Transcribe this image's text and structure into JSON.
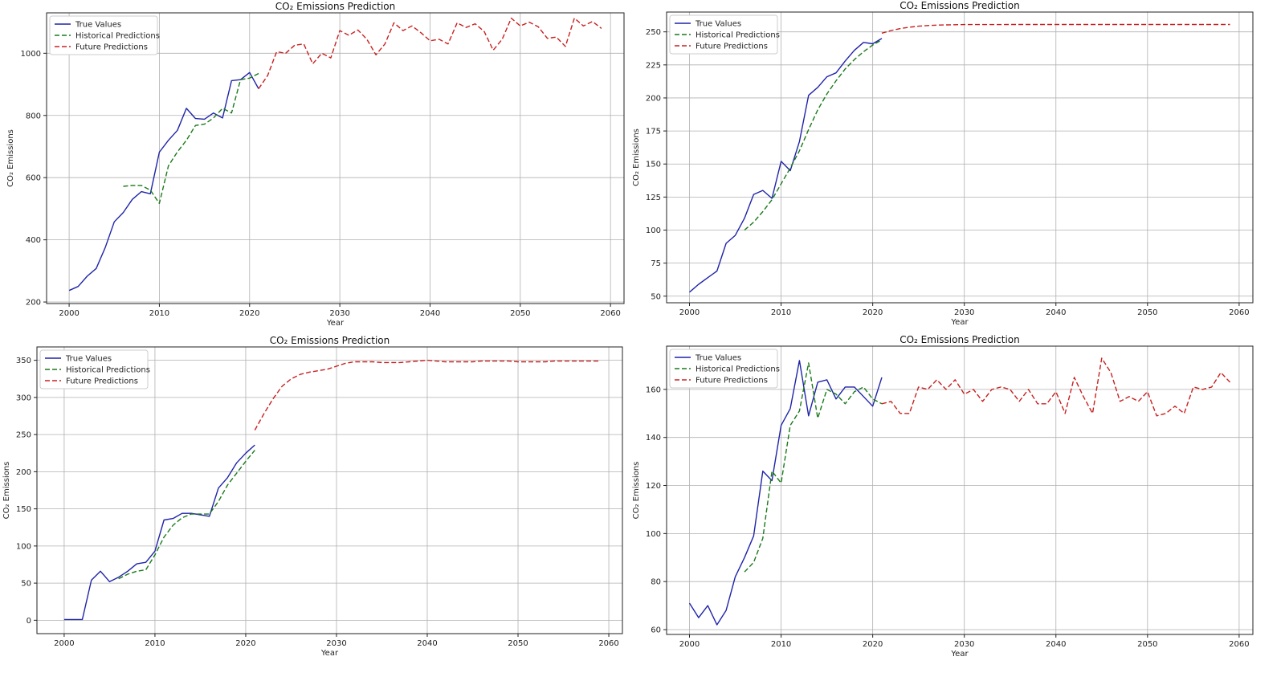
{
  "legend_labels": [
    "True Values",
    "Historical Predictions",
    "Future Predictions"
  ],
  "colors": {
    "true": "#1f24a8",
    "historical": "#1a7a1a",
    "future": "#c82020",
    "grid": "#b0b0b0"
  },
  "chart_data": [
    {
      "type": "line",
      "title": "CO₂ Emissions Prediction",
      "xlabel": "Year",
      "ylabel": "CO₂ Emissions",
      "xlim": [
        1997.5,
        2061.5
      ],
      "ylim": [
        195,
        1130
      ],
      "xticks": [
        2000,
        2010,
        2020,
        2030,
        2040,
        2050,
        2060
      ],
      "yticks": [
        200,
        400,
        600,
        800,
        1000
      ],
      "grid": true,
      "legend_position": "top-left",
      "series": [
        {
          "name": "True Values",
          "style": "solid",
          "color": "#1f24a8",
          "x": [
            2000,
            2001,
            2002,
            2003,
            2004,
            2005,
            2006,
            2007,
            2008,
            2009,
            2010,
            2011,
            2012,
            2013,
            2014,
            2015,
            2016,
            2017,
            2018,
            2019,
            2020,
            2021
          ],
          "y": [
            237,
            250,
            283,
            308,
            375,
            458,
            488,
            530,
            555,
            548,
            682,
            720,
            752,
            823,
            790,
            788,
            808,
            792,
            912,
            915,
            938,
            886
          ]
        },
        {
          "name": "Historical Predictions",
          "style": "dashed",
          "color": "#1a7a1a",
          "x": [
            2006,
            2007,
            2008,
            2009,
            2010,
            2011,
            2012,
            2013,
            2014,
            2015,
            2016,
            2017,
            2018,
            2019,
            2020,
            2021
          ],
          "y": [
            572,
            575,
            575,
            560,
            517,
            638,
            683,
            720,
            768,
            772,
            792,
            823,
            808,
            915,
            920,
            935
          ]
        },
        {
          "name": "Future Predictions",
          "style": "dashed",
          "color": "#c82020",
          "x": [
            2021,
            2022,
            2023,
            2024,
            2025,
            2026,
            2027,
            2028,
            2029,
            2030,
            2031,
            2032,
            2033,
            2034,
            2035,
            2036,
            2037,
            2038,
            2039,
            2040,
            2041,
            2042,
            2043,
            2044,
            2045,
            2046,
            2047,
            2048,
            2049,
            2050,
            2051,
            2052,
            2053,
            2054,
            2055,
            2056,
            2057,
            2058,
            2059
          ],
          "y": [
            886,
            928,
            1005,
            1000,
            1026,
            1030,
            966,
            1000,
            985,
            1073,
            1058,
            1075,
            1045,
            995,
            1030,
            1098,
            1073,
            1088,
            1066,
            1040,
            1045,
            1030,
            1098,
            1083,
            1095,
            1070,
            1010,
            1045,
            1113,
            1088,
            1100,
            1085,
            1048,
            1052,
            1022,
            1113,
            1088,
            1102,
            1080
          ]
        }
      ]
    },
    {
      "type": "line",
      "title": "CO₂ Emissions Prediction",
      "xlabel": "Year",
      "ylabel": "CO₂ Emissions",
      "xlim": [
        1997.5,
        2061.5
      ],
      "ylim": [
        45,
        265
      ],
      "xticks": [
        2000,
        2010,
        2020,
        2030,
        2040,
        2050,
        2060
      ],
      "yticks": [
        50,
        75,
        100,
        125,
        150,
        175,
        200,
        225,
        250
      ],
      "grid": true,
      "legend_position": "top-left",
      "series": [
        {
          "name": "True Values",
          "style": "solid",
          "color": "#1f24a8",
          "x": [
            2000,
            2001,
            2002,
            2003,
            2004,
            2005,
            2006,
            2007,
            2008,
            2009,
            2010,
            2011,
            2012,
            2013,
            2014,
            2015,
            2016,
            2017,
            2018,
            2019,
            2020,
            2021
          ],
          "y": [
            53,
            59,
            64,
            69,
            90,
            96,
            109,
            127,
            130,
            124,
            152,
            145,
            167,
            202,
            208,
            216,
            219,
            228,
            236,
            242,
            241,
            245
          ]
        },
        {
          "name": "Historical Predictions",
          "style": "dashed",
          "color": "#1a7a1a",
          "x": [
            2006,
            2007,
            2008,
            2009,
            2010,
            2011,
            2012,
            2013,
            2014,
            2015,
            2016,
            2017,
            2018,
            2019,
            2020,
            2021
          ],
          "y": [
            100,
            106,
            114,
            123,
            135,
            147,
            160,
            176,
            191,
            203,
            213,
            222,
            229,
            235,
            240,
            244
          ]
        },
        {
          "name": "Future Predictions",
          "style": "dashed",
          "color": "#c82020",
          "x": [
            2021,
            2022,
            2023,
            2024,
            2025,
            2026,
            2027,
            2028,
            2029,
            2030,
            2035,
            2040,
            2045,
            2050,
            2055,
            2059
          ],
          "y": [
            249,
            251,
            252.5,
            253.5,
            254.3,
            254.8,
            255.1,
            255.3,
            255.4,
            255.5,
            255.6,
            255.6,
            255.6,
            255.6,
            255.6,
            255.6
          ]
        }
      ]
    },
    {
      "type": "line",
      "title": "CO₂ Emissions Prediction",
      "xlabel": "Year",
      "ylabel": "CO₂ Emissions",
      "xlim": [
        1997,
        2061.5
      ],
      "ylim": [
        -18,
        368
      ],
      "xticks": [
        2000,
        2010,
        2020,
        2030,
        2040,
        2050,
        2060
      ],
      "yticks": [
        0,
        50,
        100,
        150,
        200,
        250,
        300,
        350
      ],
      "grid": true,
      "legend_position": "top-left",
      "series": [
        {
          "name": "True Values",
          "style": "solid",
          "color": "#1f24a8",
          "x": [
            2000,
            2001,
            2002,
            2003,
            2004,
            2005,
            2006,
            2007,
            2008,
            2009,
            2010,
            2011,
            2012,
            2013,
            2014,
            2015,
            2016,
            2017,
            2018,
            2019,
            2020,
            2021
          ],
          "y": [
            1,
            1,
            1,
            54,
            66,
            52,
            58,
            66,
            76,
            78,
            93,
            135,
            137,
            144,
            144,
            142,
            140,
            178,
            192,
            212,
            225,
            236
          ]
        },
        {
          "name": "Historical Predictions",
          "style": "dashed",
          "color": "#1a7a1a",
          "x": [
            2006,
            2007,
            2008,
            2009,
            2010,
            2011,
            2012,
            2013,
            2014,
            2015,
            2016,
            2017,
            2018,
            2019,
            2020,
            2021
          ],
          "y": [
            56,
            62,
            66,
            68,
            88,
            112,
            128,
            138,
            143,
            143,
            143,
            160,
            182,
            198,
            214,
            229
          ]
        },
        {
          "name": "Future Predictions",
          "style": "dashed",
          "color": "#c82020",
          "x": [
            2021,
            2022,
            2023,
            2024,
            2025,
            2026,
            2027,
            2028,
            2029,
            2030,
            2031,
            2032,
            2033,
            2034,
            2035,
            2036,
            2037,
            2038,
            2039,
            2040,
            2041,
            2042,
            2043,
            2044,
            2045,
            2046,
            2047,
            2048,
            2049,
            2050,
            2051,
            2052,
            2053,
            2054,
            2055,
            2056,
            2057,
            2058,
            2059
          ],
          "y": [
            256,
            278,
            298,
            315,
            325,
            331,
            334,
            336,
            338,
            342,
            346,
            348,
            348,
            348,
            347,
            347,
            347,
            348,
            349,
            350,
            349,
            348,
            348,
            348,
            348,
            349,
            349,
            349,
            349,
            348,
            348,
            348,
            348,
            349,
            349,
            349,
            349,
            349,
            349
          ]
        }
      ]
    },
    {
      "type": "line",
      "title": "CO₂ Emissions Prediction",
      "xlabel": "Year",
      "ylabel": "CO₂ Emissions",
      "xlim": [
        1997.5,
        2061.5
      ],
      "ylim": [
        58,
        178
      ],
      "xticks": [
        2000,
        2010,
        2020,
        2030,
        2040,
        2050,
        2060
      ],
      "yticks": [
        60,
        80,
        100,
        120,
        140,
        160
      ],
      "grid": true,
      "legend_position": "top-left",
      "series": [
        {
          "name": "True Values",
          "style": "solid",
          "color": "#1f24a8",
          "x": [
            2000,
            2001,
            2002,
            2003,
            2004,
            2005,
            2006,
            2007,
            2008,
            2009,
            2010,
            2011,
            2012,
            2013,
            2014,
            2015,
            2016,
            2017,
            2018,
            2019,
            2020,
            2021
          ],
          "y": [
            71,
            65,
            70,
            62,
            68,
            82,
            90,
            99,
            126,
            122,
            145,
            152,
            172,
            149,
            163,
            164,
            156,
            161,
            161,
            157,
            153,
            165
          ]
        },
        {
          "name": "Historical Predictions",
          "style": "dashed",
          "color": "#1a7a1a",
          "x": [
            2006,
            2007,
            2008,
            2009,
            2010,
            2011,
            2012,
            2013,
            2014,
            2015,
            2016,
            2017,
            2018,
            2019,
            2020,
            2021
          ],
          "y": [
            84,
            88,
            98,
            126,
            121,
            145,
            151,
            171,
            148,
            160,
            158,
            154,
            159,
            161,
            156,
            154
          ]
        },
        {
          "name": "Future Predictions",
          "style": "dashed",
          "color": "#c82020",
          "x": [
            2021,
            2022,
            2023,
            2024,
            2025,
            2026,
            2027,
            2028,
            2029,
            2030,
            2031,
            2032,
            2033,
            2034,
            2035,
            2036,
            2037,
            2038,
            2039,
            2040,
            2041,
            2042,
            2043,
            2044,
            2045,
            2046,
            2047,
            2048,
            2049,
            2050,
            2051,
            2052,
            2053,
            2054,
            2055,
            2056,
            2057,
            2058,
            2059
          ],
          "y": [
            154,
            155,
            150,
            150,
            161,
            160,
            164,
            160,
            164,
            158,
            160,
            155,
            160,
            161,
            160,
            155,
            160,
            154,
            154,
            159,
            150,
            165,
            157,
            150,
            173,
            167,
            155,
            157,
            155,
            159,
            149,
            150,
            153,
            150,
            161,
            160,
            161,
            167,
            163
          ]
        }
      ]
    }
  ]
}
